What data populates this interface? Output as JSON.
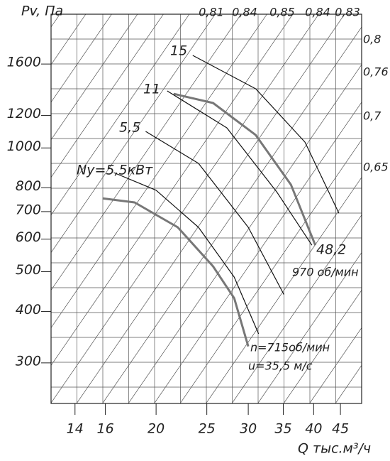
{
  "chart_data": {
    "type": "line",
    "y_label": "Pv, Па",
    "x_label": "Q тыс.м³/ч",
    "log_x": true,
    "log_y": true,
    "xlim": [
      12.6,
      49.4
    ],
    "ylim": [
      239,
      2115
    ],
    "xticks": [
      14,
      16,
      20,
      25,
      30,
      35,
      40,
      45
    ],
    "yticks": [
      300,
      400,
      500,
      600,
      700,
      800,
      1000,
      1200,
      1600
    ],
    "series": [
      {
        "color": "#111111",
        "width": 1.2,
        "x": [
          23.5,
          31.0,
          38.5,
          44.7
        ],
        "values": [
          1679,
          1393,
          1033,
          694
        ]
      },
      {
        "color": "#777777",
        "width": 3,
        "x": [
          21.6,
          25.7,
          31.0,
          36.2,
          40.3
        ],
        "values": [
          1354,
          1286,
          1075,
          814,
          580
        ]
      },
      {
        "color": "#111111",
        "width": 1.2,
        "x": [
          21.0,
          27.3,
          34.0,
          39.7
        ],
        "values": [
          1376,
          1119,
          782,
          580
        ]
      },
      {
        "color": "#111111",
        "width": 1.2,
        "x": [
          19.1,
          24.1,
          30.0,
          35.1
        ],
        "values": [
          1097,
          917,
          641,
          440
        ]
      },
      {
        "color": "#111111",
        "width": 1.2,
        "x": [
          16.6,
          20.0,
          24.1,
          28.2,
          31.4
        ],
        "values": [
          871,
          789,
          641,
          485,
          353
        ]
      },
      {
        "color": "#777777",
        "width": 3,
        "x": [
          15.8,
          18.2,
          22.0,
          25.7,
          28.2,
          30.0
        ],
        "values": [
          754,
          737,
          641,
          515,
          431,
          329
        ]
      }
    ],
    "annotations": [
      "15",
      "11",
      "5,5",
      "Ny=5,5кВт",
      "48,2",
      "970 об/мин",
      "n=715об/мин",
      "u=35,5 м/с"
    ],
    "efficiency_top": [
      "0,81",
      "0,84",
      "0,85",
      "0,84",
      "0,83"
    ],
    "efficiency_right": [
      "0,8",
      "0,76",
      "0,7",
      "0,65"
    ]
  }
}
